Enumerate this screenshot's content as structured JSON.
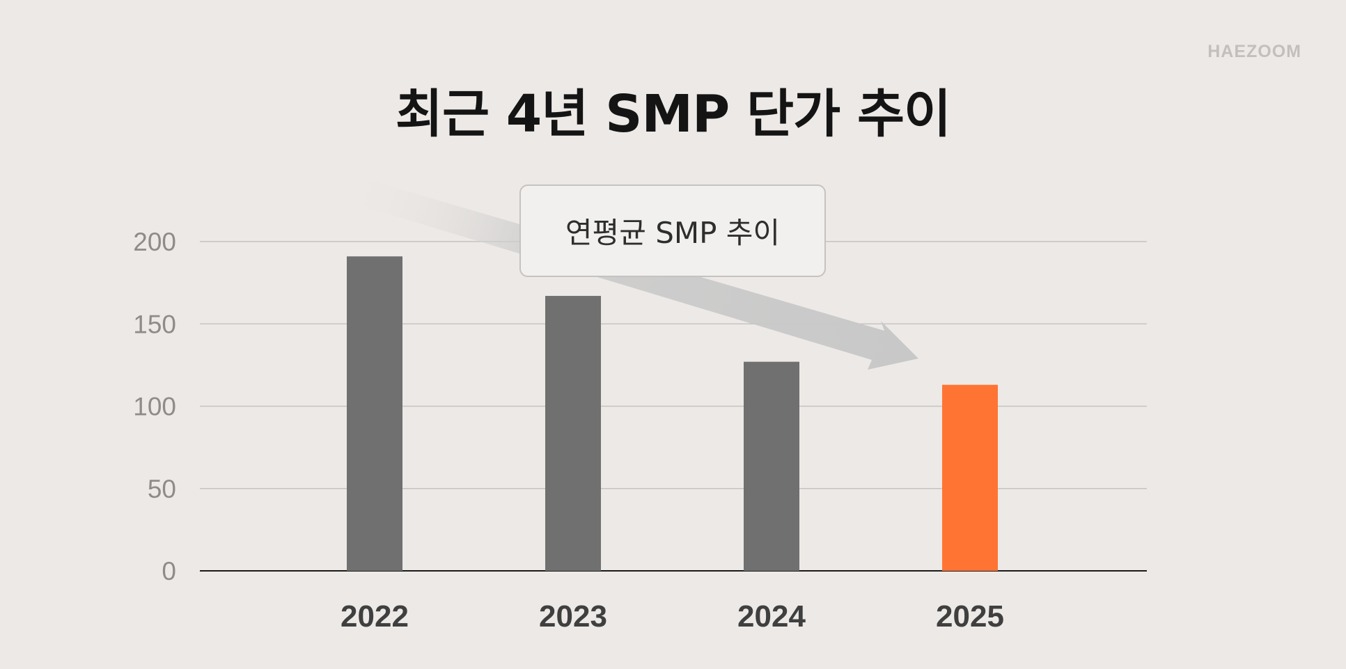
{
  "brand": "HAEZOOM",
  "title": "최근 4년 SMP 단가 추이",
  "annotation": "연평균 SMP 추이",
  "colors": {
    "background": "#ede9e6",
    "bar_default": "#707070",
    "bar_highlight": "#ff7433",
    "gridline": "#c6c3c0",
    "axis": "#1a1a1a",
    "tick_label": "#8f8b88",
    "category_label": "#3f3f3f",
    "arrow": "#c8c8c8"
  },
  "chart_data": {
    "type": "bar",
    "title": "최근 4년 SMP 단가 추이",
    "categories": [
      "2022",
      "2023",
      "2024",
      "2025"
    ],
    "values": [
      191,
      167,
      127,
      113
    ],
    "highlight_index": 3,
    "ylim": [
      0,
      200
    ],
    "yticks": [
      0,
      50,
      100,
      150,
      200
    ],
    "xlabel": "",
    "ylabel": "",
    "grid": true,
    "annotation": {
      "text": "연평균 SMP 추이",
      "type": "downward trend arrow"
    }
  }
}
